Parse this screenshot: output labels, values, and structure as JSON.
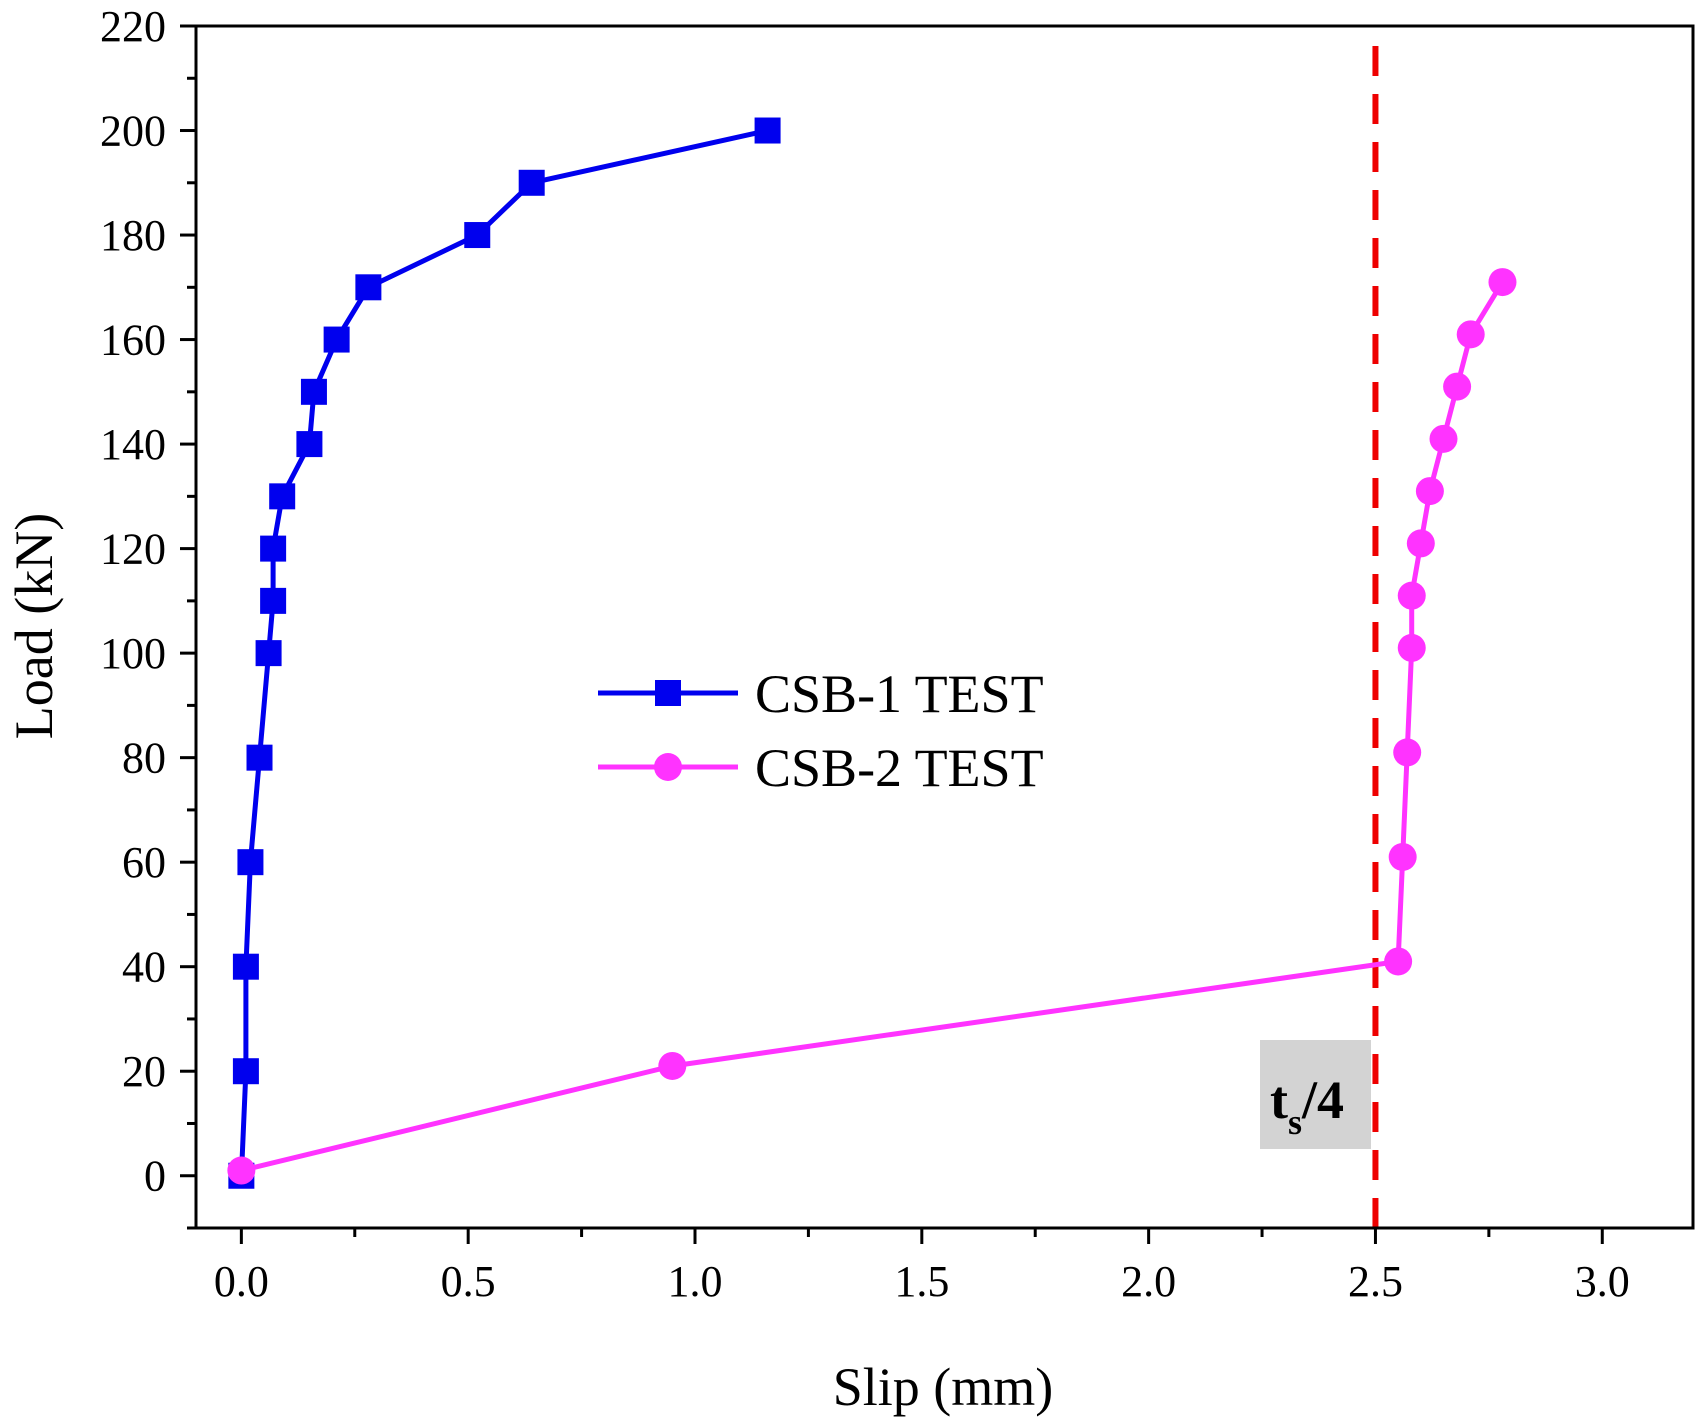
{
  "chart_data": {
    "type": "line",
    "title": "",
    "xlabel": "Slip (mm)",
    "ylabel": "Load (kN)",
    "xlim": [
      -0.1,
      3.2
    ],
    "ylim": [
      -10,
      220
    ],
    "xticks": [
      0.0,
      0.5,
      1.0,
      1.5,
      2.0,
      2.5,
      3.0
    ],
    "xtick_labels": [
      "0.0",
      "0.5",
      "1.0",
      "1.5",
      "2.0",
      "2.5",
      "3.0"
    ],
    "yticks": [
      0,
      20,
      40,
      60,
      80,
      100,
      120,
      140,
      160,
      180,
      200,
      220
    ],
    "ytick_labels": [
      "0",
      "20",
      "40",
      "60",
      "80",
      "100",
      "120",
      "140",
      "160",
      "180",
      "200",
      "220"
    ],
    "grid": false,
    "legend_position": "center-left",
    "series": [
      {
        "name": "CSB-1 TEST",
        "color": "#0000EE",
        "marker": "square",
        "x": [
          0.0,
          0.01,
          0.01,
          0.02,
          0.04,
          0.06,
          0.07,
          0.07,
          0.09,
          0.15,
          0.16,
          0.21,
          0.28,
          0.52,
          0.64,
          1.16
        ],
        "y": [
          0,
          20,
          40,
          60,
          80,
          100,
          110,
          120,
          130,
          140,
          150,
          160,
          170,
          180,
          190,
          200
        ]
      },
      {
        "name": "CSB-2 TEST",
        "color": "#FF33FF",
        "marker": "circle",
        "x": [
          0.0,
          0.95,
          2.55,
          2.56,
          2.57,
          2.58,
          2.58,
          2.6,
          2.62,
          2.65,
          2.68,
          2.71,
          2.78
        ],
        "y": [
          1,
          21,
          41,
          61,
          81,
          101,
          111,
          121,
          131,
          141,
          151,
          161,
          171
        ]
      }
    ],
    "reference_line": {
      "x": 2.5,
      "color": "#EE0000",
      "style": "dashed"
    },
    "annotation": {
      "text": "t",
      "subscript": "s",
      "suffix": "/4",
      "box_color": "#D3D3D3"
    }
  }
}
